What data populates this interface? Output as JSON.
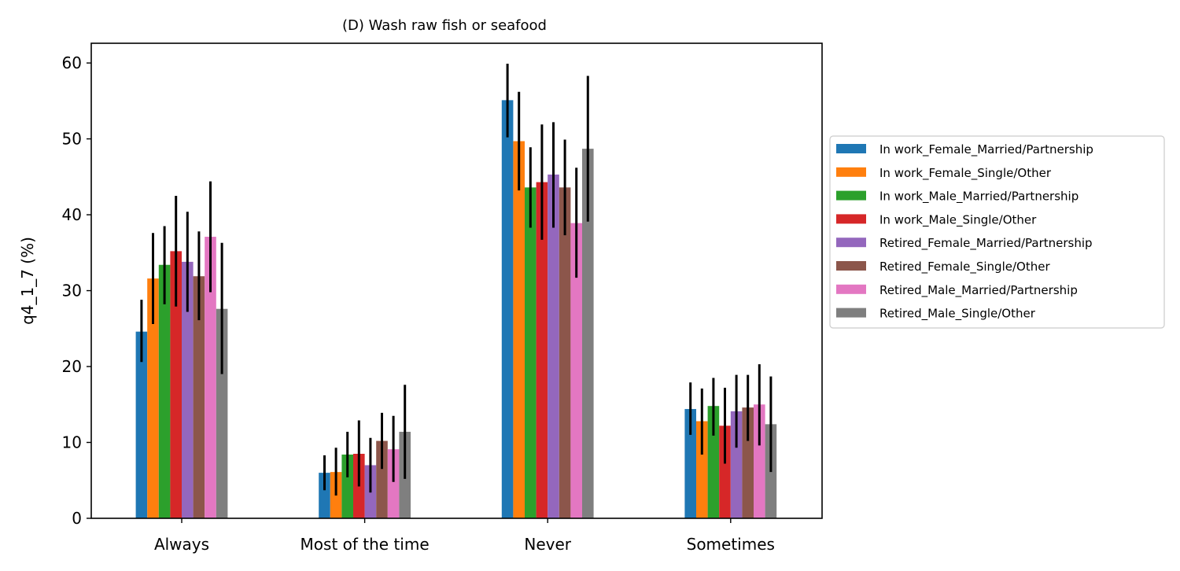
{
  "chart_data": {
    "type": "bar",
    "title": "(D) Wash raw fish or seafood",
    "xlabel": "",
    "ylabel": "q4_1_7 (%)",
    "ylim": [
      0,
      62.6
    ],
    "yticks": [
      0,
      10,
      20,
      30,
      40,
      50,
      60
    ],
    "grid": false,
    "legend_position": "right",
    "categories": [
      "Always",
      "Most of the time",
      "Never",
      "Sometimes"
    ],
    "series": [
      {
        "name": "In work_Female_Married/Partnership",
        "color": "#1f77b4",
        "values": [
          24.6,
          6.0,
          55.1,
          14.4
        ],
        "err_low": [
          20.6,
          3.7,
          50.2,
          11.0
        ],
        "err_high": [
          28.8,
          8.3,
          59.9,
          17.9
        ]
      },
      {
        "name": "In work_Female_Single/Other",
        "color": "#ff7f0e",
        "values": [
          31.6,
          6.1,
          49.7,
          12.8
        ],
        "err_low": [
          25.6,
          3.0,
          43.2,
          8.4
        ],
        "err_high": [
          37.6,
          9.3,
          56.2,
          17.1
        ]
      },
      {
        "name": "In work_Male_Married/Partnership",
        "color": "#2ca02c",
        "values": [
          33.4,
          8.4,
          43.6,
          14.8
        ],
        "err_low": [
          28.2,
          5.4,
          38.3,
          10.9
        ],
        "err_high": [
          38.5,
          11.4,
          48.9,
          18.5
        ]
      },
      {
        "name": "In work_Male_Single/Other",
        "color": "#d62728",
        "values": [
          35.2,
          8.5,
          44.3,
          12.2
        ],
        "err_low": [
          27.9,
          4.2,
          36.7,
          7.2
        ],
        "err_high": [
          42.5,
          12.9,
          51.9,
          17.2
        ]
      },
      {
        "name": "Retired_Female_Married/Partnership",
        "color": "#9467bd",
        "values": [
          33.8,
          7.0,
          45.3,
          14.1
        ],
        "err_low": [
          27.2,
          3.4,
          38.3,
          9.3
        ],
        "err_high": [
          40.4,
          10.6,
          52.2,
          18.9
        ]
      },
      {
        "name": "Retired_Female_Single/Other",
        "color": "#8c564b",
        "values": [
          31.9,
          10.2,
          43.6,
          14.6
        ],
        "err_low": [
          26.1,
          6.5,
          37.3,
          10.2
        ],
        "err_high": [
          37.8,
          13.9,
          49.9,
          18.9
        ]
      },
      {
        "name": "Retired_Male_Married/Partnership",
        "color": "#e377c2",
        "values": [
          37.1,
          9.1,
          38.9,
          15.0
        ],
        "err_low": [
          29.8,
          4.8,
          31.7,
          9.6
        ],
        "err_high": [
          44.4,
          13.5,
          46.2,
          20.3
        ]
      },
      {
        "name": "Retired_Male_Single/Other",
        "color": "#7f7f7f",
        "values": [
          27.6,
          11.4,
          48.7,
          12.4
        ],
        "err_low": [
          19.0,
          5.2,
          39.1,
          6.1
        ],
        "err_high": [
          36.3,
          17.6,
          58.3,
          18.7
        ]
      }
    ]
  }
}
